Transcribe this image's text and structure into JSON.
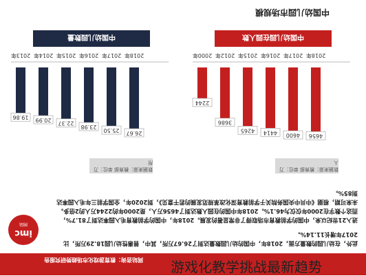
{
  "page_title": "中国幼儿园市场规模",
  "left_panel": {
    "header": "中国幼儿园数量",
    "source": "数据来源：教育部 单位：万所"
  },
  "right_panel": {
    "header": "中国幼儿园在园人数",
    "source": "数据来源：教育部 单位：万人"
  },
  "paragraph_1": "进入21世纪以来，中国的学前教育市场取得了非常显著的发展。2018年，中国的学前教育毛入园率达到了81.7%，而这个数字在2000年仅仅为46.1%。2018年中国的在园人数达到了4656万人，是2000年的2244万人的2倍多。未来可期，根据《中共中央国务院关于学前教育深化改革规范发展的若干意见》，到2020年，全国学前三年毛入园率达到85%。",
  "paragraph_2": "此外，在幼儿园的数量方面，2018年，中国的幼儿园数量达到了26.67万所，其中，普惠性幼儿园18.29万所，比2017年增长11.14%。",
  "logo": {
    "text": "imc",
    "sub": "网站"
  },
  "footer": "网站咨询：教育游戏化市场趋势研究报告",
  "watermark": "游戏化教学挑战最新趋势",
  "colors": {
    "navy": "#1f2a44",
    "red": "#c41f1f"
  },
  "chart_data": [
    {
      "type": "bar",
      "title": "中国幼儿园数量",
      "categories": [
        "2018年",
        "2017年",
        "2016年",
        "2015年",
        "2014年",
        "2013年"
      ],
      "values": [
        26.67,
        25.5,
        23.98,
        22.37,
        20.99,
        19.86
      ],
      "ylim": [
        0,
        30
      ],
      "color": "#1f2a44"
    },
    {
      "type": "bar",
      "title": "中国幼儿园在园人数",
      "categories": [
        "2018年",
        "2017年",
        "2016年",
        "2015年",
        "2012年",
        "2000年"
      ],
      "values": [
        4656,
        4600,
        4414,
        4265,
        3686,
        2244
      ],
      "ylim": [
        0,
        5000
      ],
      "color": "#c41f1f"
    }
  ]
}
